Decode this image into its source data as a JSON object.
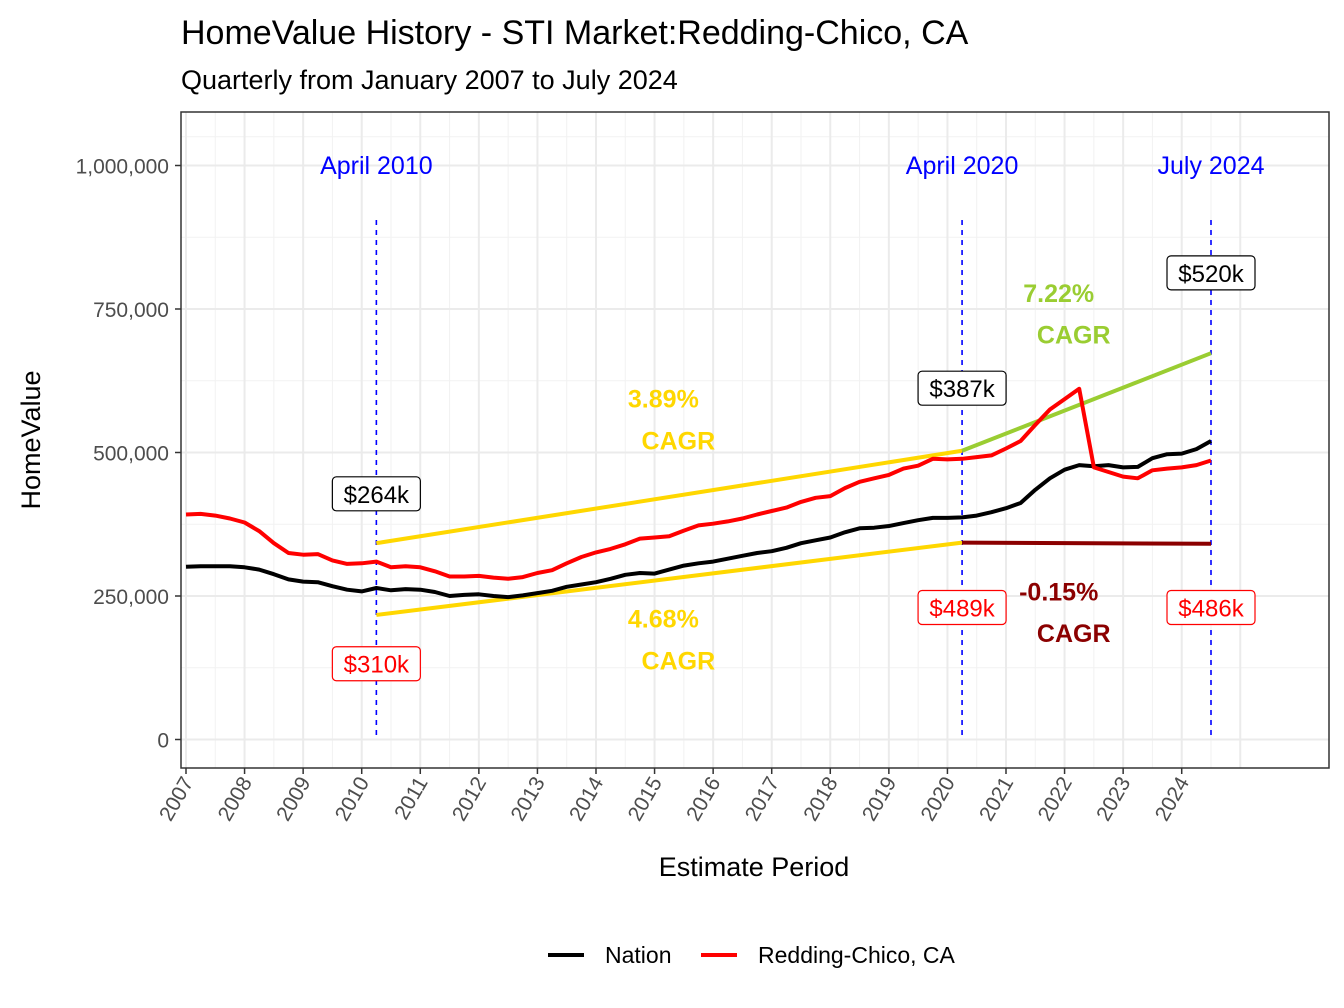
{
  "chart_data": {
    "type": "line",
    "title": "HomeValue History - STI Market:Redding-Chico, CA",
    "subtitle": "Quarterly from January 2007 to July 2024",
    "xlabel": "Estimate Period",
    "ylabel": "HomeValue",
    "xlim": [
      2007,
      2025.4
    ],
    "ylim": [
      -50000,
      1090000
    ],
    "yticks": [
      0,
      250000,
      500000,
      750000,
      1000000
    ],
    "ytick_labels": [
      "0",
      "250,000",
      "500,000",
      "750,000",
      "1,000,000"
    ],
    "xticks": [
      2007,
      2008,
      2009,
      2010,
      2011,
      2012,
      2013,
      2014,
      2015,
      2016,
      2017,
      2018,
      2019,
      2020,
      2021,
      2022,
      2023,
      2024
    ],
    "grid": true,
    "legend_position": "bottom",
    "series": [
      {
        "name": "Nation",
        "color": "#000000",
        "x": [
          2007.0,
          2007.25,
          2007.5,
          2007.75,
          2008.0,
          2008.25,
          2008.5,
          2008.75,
          2009.0,
          2009.25,
          2009.5,
          2009.75,
          2010.0,
          2010.25,
          2010.5,
          2010.75,
          2011.0,
          2011.25,
          2011.5,
          2011.75,
          2012.0,
          2012.25,
          2012.5,
          2012.75,
          2013.0,
          2013.25,
          2013.5,
          2013.75,
          2014.0,
          2014.25,
          2014.5,
          2014.75,
          2015.0,
          2015.25,
          2015.5,
          2015.75,
          2016.0,
          2016.25,
          2016.5,
          2016.75,
          2017.0,
          2017.25,
          2017.5,
          2017.75,
          2018.0,
          2018.25,
          2018.5,
          2018.75,
          2019.0,
          2019.25,
          2019.5,
          2019.75,
          2020.0,
          2020.25,
          2020.5,
          2020.75,
          2021.0,
          2021.25,
          2021.5,
          2021.75,
          2022.0,
          2022.25,
          2022.5,
          2022.75,
          2023.0,
          2023.25,
          2023.5,
          2023.75,
          2024.0,
          2024.25,
          2024.5
        ],
        "values": [
          301000,
          302000,
          302000,
          302000,
          300000,
          296000,
          288000,
          279000,
          275000,
          274000,
          267000,
          261000,
          258000,
          264000,
          260000,
          262000,
          261000,
          257000,
          250000,
          252000,
          253000,
          250000,
          248000,
          251000,
          255000,
          259000,
          266000,
          270000,
          274000,
          280000,
          287000,
          290000,
          289000,
          296000,
          303000,
          307000,
          310000,
          315000,
          320000,
          325000,
          328000,
          334000,
          342000,
          347000,
          352000,
          361000,
          368000,
          369000,
          372000,
          377000,
          382000,
          386000,
          386000,
          387000,
          390000,
          396000,
          403000,
          412000,
          435000,
          455000,
          470000,
          478000,
          476000,
          478000,
          474000,
          475000,
          490000,
          497000,
          498000,
          506000,
          520000
        ]
      },
      {
        "name": "Redding-Chico, CA",
        "color": "#ff0000",
        "x": [
          2007.0,
          2007.25,
          2007.5,
          2007.75,
          2008.0,
          2008.25,
          2008.5,
          2008.75,
          2009.0,
          2009.25,
          2009.5,
          2009.75,
          2010.0,
          2010.25,
          2010.5,
          2010.75,
          2011.0,
          2011.25,
          2011.5,
          2011.75,
          2012.0,
          2012.25,
          2012.5,
          2012.75,
          2013.0,
          2013.25,
          2013.5,
          2013.75,
          2014.0,
          2014.25,
          2014.5,
          2014.75,
          2015.0,
          2015.25,
          2015.5,
          2015.75,
          2016.0,
          2016.25,
          2016.5,
          2016.75,
          2017.0,
          2017.25,
          2017.5,
          2017.75,
          2018.0,
          2018.25,
          2018.5,
          2018.75,
          2019.0,
          2019.25,
          2019.5,
          2019.75,
          2020.0,
          2020.25,
          2020.5,
          2020.75,
          2021.0,
          2021.25,
          2021.5,
          2021.75,
          2022.0,
          2022.25,
          2022.5,
          2022.75,
          2023.0,
          2023.25,
          2023.5,
          2023.75,
          2024.0,
          2024.25,
          2024.5
        ],
        "values": [
          392000,
          393000,
          390000,
          385000,
          378000,
          363000,
          342000,
          325000,
          322000,
          323000,
          312000,
          306000,
          307000,
          310000,
          300000,
          302000,
          300000,
          293000,
          284000,
          284000,
          285000,
          282000,
          280000,
          283000,
          290000,
          295000,
          307000,
          318000,
          326000,
          332000,
          340000,
          350000,
          352000,
          354000,
          364000,
          373000,
          376000,
          380000,
          385000,
          392000,
          398000,
          404000,
          414000,
          421000,
          424000,
          438000,
          449000,
          455000,
          461000,
          472000,
          477000,
          489000,
          488000,
          489000,
          492000,
          495000,
          507000,
          520000,
          548000,
          575000,
          593000,
          611000,
          474000,
          466000,
          458000,
          455000,
          469000,
          472000,
          474000,
          478000,
          486000
        ]
      }
    ],
    "vertical_markers": [
      {
        "x": 2010.25,
        "label": "April 2010"
      },
      {
        "x": 2020.25,
        "label": "April 2020"
      },
      {
        "x": 2024.5,
        "label": "July 2024"
      }
    ],
    "trend_lines": [
      {
        "from": [
          2010.25,
          342000
        ],
        "to": [
          2020.25,
          503000
        ],
        "color": "#ffd700",
        "label": "3.89%\nCAGR"
      },
      {
        "from": [
          2010.25,
          217000
        ],
        "to": [
          2020.25,
          343000
        ],
        "color": "#ffd700",
        "label": "4.68%\nCAGR"
      },
      {
        "from": [
          2020.25,
          503000
        ],
        "to": [
          2024.5,
          673000
        ],
        "color": "#9acd32",
        "label": "7.22%\nCAGR"
      },
      {
        "from": [
          2020.25,
          343000
        ],
        "to": [
          2024.5,
          341000
        ],
        "color": "#8b0000",
        "label": "-0.15%\nCAGR"
      }
    ],
    "value_labels": [
      {
        "x": 2010.25,
        "y": 428000,
        "text": "$264k",
        "color": "#000000"
      },
      {
        "x": 2020.25,
        "y": 612000,
        "text": "$387k",
        "color": "#000000"
      },
      {
        "x": 2024.5,
        "y": 813000,
        "text": "$520k",
        "color": "#000000"
      },
      {
        "x": 2010.25,
        "y": 132000,
        "text": "$310k",
        "color": "#ff0000"
      },
      {
        "x": 2020.25,
        "y": 230000,
        "text": "$489k",
        "color": "#ff0000"
      },
      {
        "x": 2024.5,
        "y": 230000,
        "text": "$486k",
        "color": "#ff0000"
      }
    ],
    "cagr_labels": [
      {
        "x": 2015.15,
        "y1": 578000,
        "y2": 505000,
        "line1": "3.89%",
        "line2": "CAGR",
        "color": "#ffd700"
      },
      {
        "x": 2015.15,
        "y1": 195000,
        "y2": 122000,
        "line1": "4.68%",
        "line2": "CAGR",
        "color": "#ffd700"
      },
      {
        "x": 2021.9,
        "y1": 762000,
        "y2": 690000,
        "line1": "7.22%",
        "line2": "CAGR",
        "color": "#9acd32"
      },
      {
        "x": 2021.9,
        "y1": 242000,
        "y2": 170000,
        "line1": "-0.15%",
        "line2": "CAGR",
        "color": "#8b0000"
      }
    ]
  }
}
